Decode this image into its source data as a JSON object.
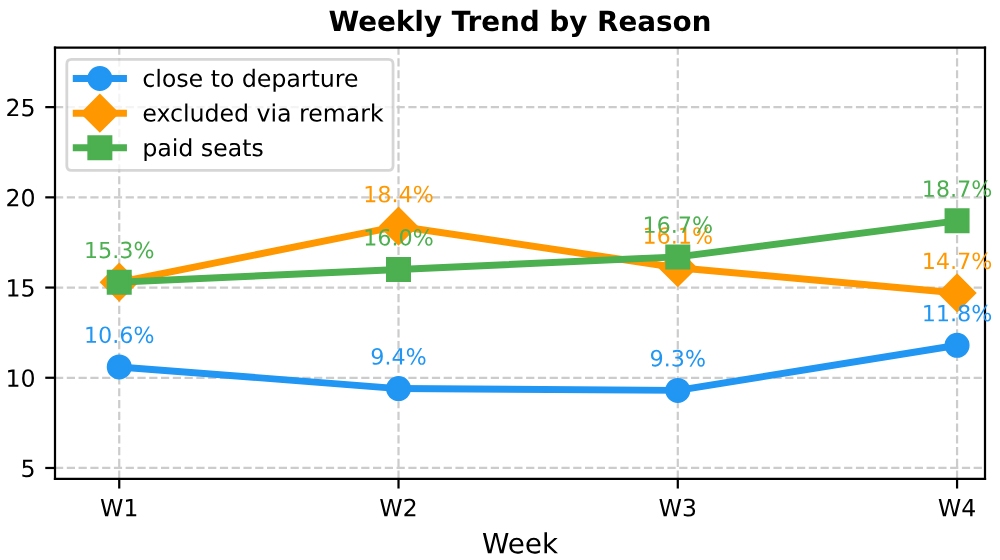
{
  "chart_data": {
    "type": "line",
    "title": "Weekly Trend by Reason",
    "xlabel": "Week",
    "categories": [
      "W1",
      "W2",
      "W3",
      "W4"
    ],
    "series": [
      {
        "name": "close to departure",
        "color": "#2196f3",
        "marker": "circle",
        "values": [
          10.6,
          9.4,
          9.3,
          11.8
        ],
        "value_labels": [
          "10.6%",
          "9.4%",
          "9.3%",
          "11.8%"
        ]
      },
      {
        "name": "excluded via remark",
        "color": "#ff9800",
        "marker": "diamond",
        "values": [
          15.3,
          18.4,
          16.1,
          14.7
        ],
        "value_labels": [
          null,
          "18.4%",
          "16.1%",
          "14.7%"
        ]
      },
      {
        "name": "paid seats",
        "color": "#4caf50",
        "marker": "square",
        "values": [
          15.3,
          16.0,
          16.7,
          18.7
        ],
        "value_labels": [
          "15.3%",
          "16.0%",
          "16.7%",
          "18.7%"
        ]
      }
    ],
    "ylim": [
      4.4,
      28.3
    ],
    "yticks": [
      5,
      10,
      15,
      20,
      25
    ],
    "grid": true,
    "legend": "top left",
    "line_style": "solid"
  }
}
